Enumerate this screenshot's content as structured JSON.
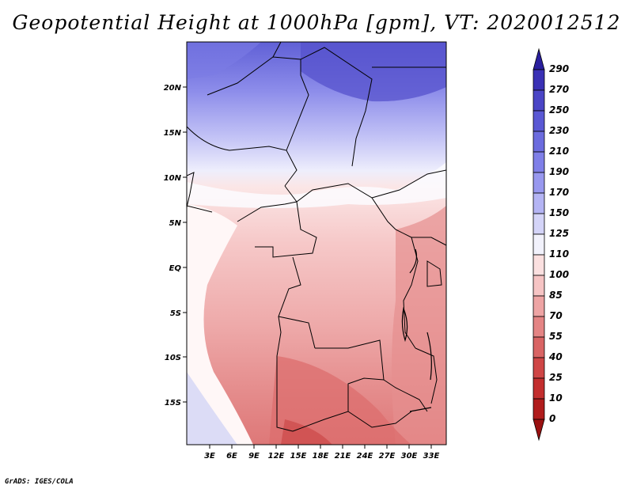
{
  "title": "Geopotential Height at 1000hPa [gpm], VT: 2020012512",
  "footer": "GrADS: IGES/COLA",
  "map": {
    "lat_labels": [
      "20N",
      "15N",
      "10N",
      "5N",
      "EQ",
      "5S",
      "10S",
      "15S"
    ],
    "lon_labels": [
      "3E",
      "6E",
      "9E",
      "12E",
      "15E",
      "18E",
      "21E",
      "24E",
      "27E",
      "30E",
      "33E"
    ]
  },
  "colorbar": {
    "levels": [
      "290",
      "270",
      "250",
      "230",
      "210",
      "190",
      "170",
      "150",
      "125",
      "110",
      "100",
      "85",
      "70",
      "55",
      "40",
      "25",
      "10",
      "0"
    ],
    "colors": [
      "#2a1f9e",
      "#3a31b5",
      "#4a45c6",
      "#5a58d4",
      "#6b6bde",
      "#7f7fe8",
      "#9898ef",
      "#b4b4f4",
      "#d4d4f8",
      "#f2f2fc",
      "#fbe0e0",
      "#f6c4c4",
      "#eea4a4",
      "#e48484",
      "#d96464",
      "#cf4646",
      "#c32e2e",
      "#b01c1c",
      "#9a1010"
    ]
  }
}
